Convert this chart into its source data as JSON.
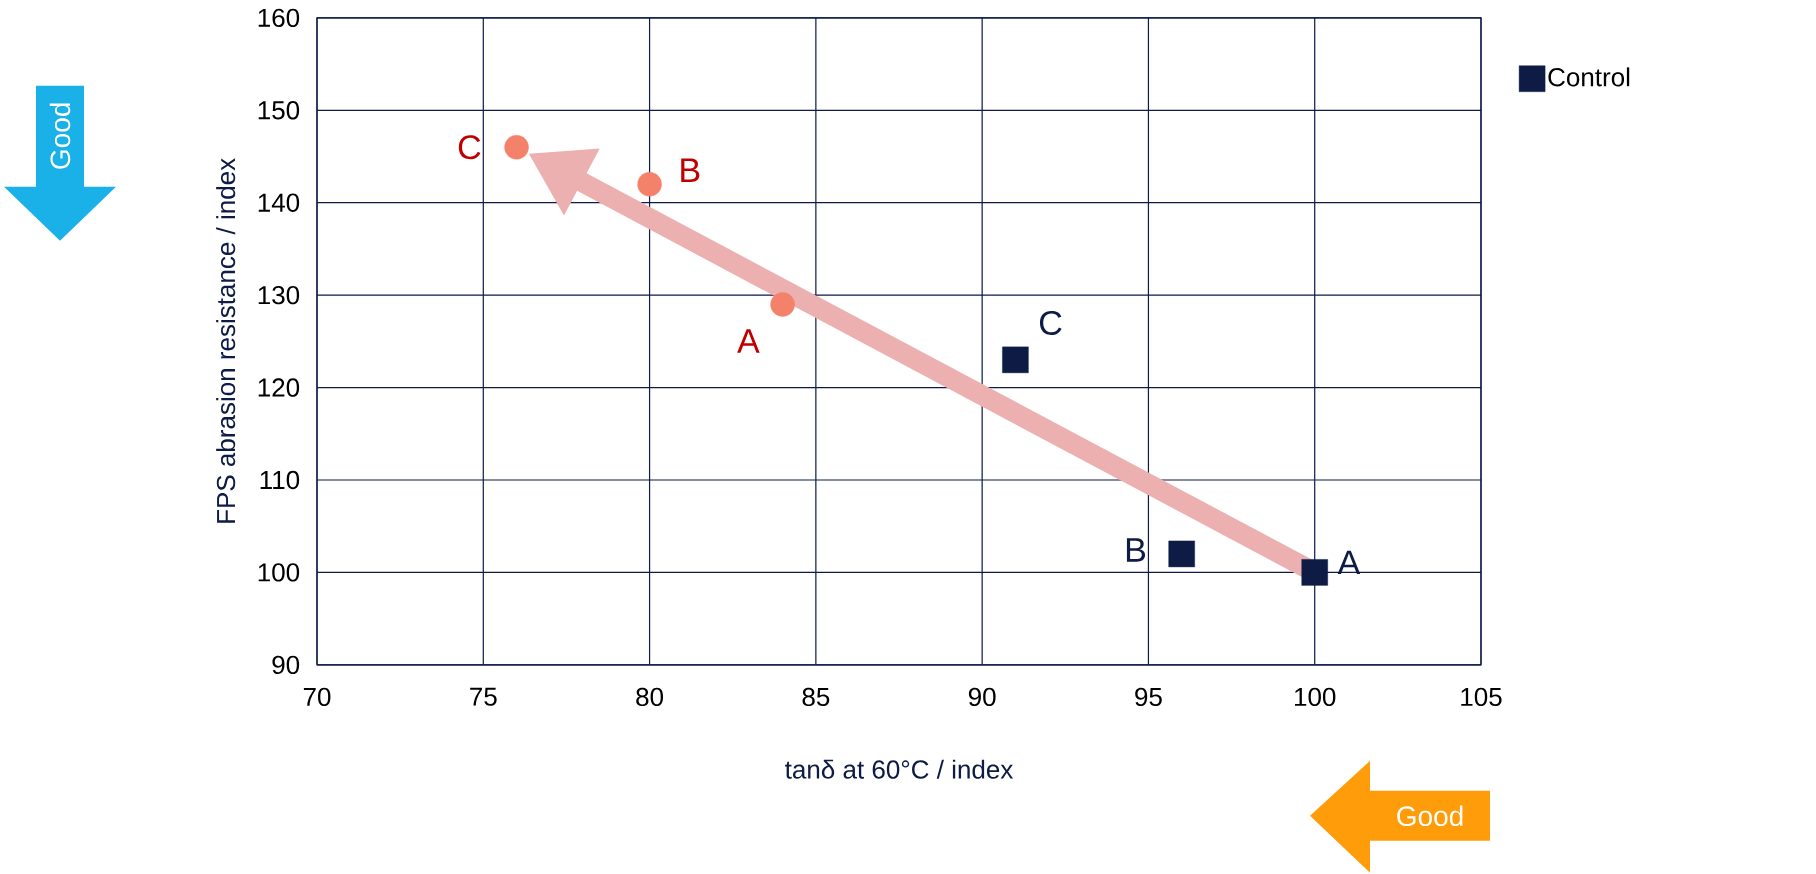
{
  "chart_data": {
    "type": "scatter",
    "xlabel": "tanδ at 60°C / index",
    "ylabel": "FPS abrasion resistance / index",
    "series": [
      {
        "name": "Control",
        "color": "#0d1b45",
        "marker": "square",
        "x": [
          100,
          96,
          91
        ],
        "values": [
          100,
          102,
          123
        ]
      },
      {
        "color": "#f4826a",
        "marker": "circle",
        "x": [
          84,
          80,
          76
        ],
        "values": [
          129,
          142,
          146
        ]
      }
    ],
    "xlim": [
      70,
      105
    ],
    "xticks": [
      70,
      75,
      80,
      85,
      90,
      95,
      100,
      105
    ],
    "ylim": [
      90,
      160
    ],
    "yticks": [
      90,
      100,
      110,
      120,
      130,
      140,
      150,
      160
    ],
    "grid": true,
    "legend": "top right",
    "annotations": [
      {
        "text": "A",
        "x": 100,
        "y": 100
      },
      {
        "text": "B",
        "x": 96,
        "y": 102
      },
      {
        "text": "C",
        "x": 91,
        "y": 123
      },
      {
        "text": "A",
        "x": 84,
        "y": 129
      },
      {
        "text": "B",
        "x": 80,
        "y": 142
      },
      {
        "text": "C",
        "x": 76,
        "y": 146
      },
      "Good",
      "Good"
    ]
  }
}
